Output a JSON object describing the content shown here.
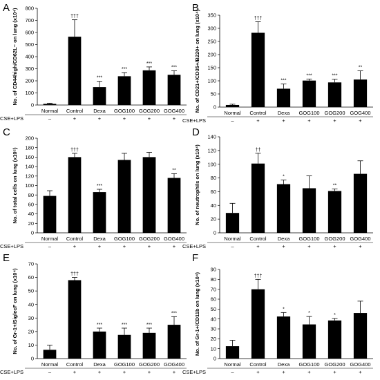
{
  "figure": {
    "condition_label": "CSE+LPS",
    "groups": [
      "Normal",
      "Control",
      "Dexa",
      "GOG100",
      "GOG200",
      "GOG400"
    ],
    "treatment_marks": [
      "–",
      "+",
      "+",
      "+",
      "+",
      "+"
    ]
  },
  "chart_data": [
    {
      "type": "bar",
      "panel_label": "A",
      "ylabel": "No. of CD44high/CD62L− on lung (x10⁴)",
      "ylim": [
        0,
        800
      ],
      "yticks": [
        0,
        100,
        200,
        300,
        400,
        500,
        600,
        700,
        800
      ],
      "categories": [
        "Normal",
        "Control",
        "Dexa",
        "GOG100",
        "GOG200",
        "GOG400"
      ],
      "values": [
        10,
        565,
        148,
        238,
        287,
        250
      ],
      "errors": [
        5,
        140,
        48,
        30,
        28,
        33
      ],
      "significance": [
        "",
        "†††",
        "***",
        "***",
        "***",
        "***"
      ]
    },
    {
      "type": "bar",
      "panel_label": "B",
      "ylabel": "No. of CD21+/CD35+/B220+ on lung (x10⁴)",
      "ylim": [
        0,
        350
      ],
      "yticks": [
        0,
        50,
        100,
        150,
        200,
        250,
        300,
        350
      ],
      "categories": [
        "Normal",
        "Control",
        "Dexa",
        "GOG100",
        "GOG200",
        "GOG400"
      ],
      "values": [
        8,
        283,
        70,
        101,
        94,
        105
      ],
      "errors": [
        3,
        42,
        18,
        6,
        12,
        33
      ],
      "significance": [
        "",
        "†††",
        "***",
        "***",
        "***",
        "**"
      ]
    },
    {
      "type": "bar",
      "panel_label": "C",
      "ylabel": "No. of total cells on lung (x10⁵)",
      "ylim": [
        0,
        200
      ],
      "yticks": [
        0,
        20,
        40,
        60,
        80,
        100,
        120,
        140,
        160,
        180,
        200
      ],
      "categories": [
        "Normal",
        "Control",
        "Dexa",
        "GOG100",
        "GOG200",
        "GOG400"
      ],
      "values": [
        78,
        160,
        86,
        154,
        160,
        116
      ],
      "errors": [
        11,
        8,
        6,
        14,
        10,
        9
      ],
      "significance": [
        "",
        "†††",
        "***",
        "",
        "",
        "**"
      ]
    },
    {
      "type": "bar",
      "panel_label": "D",
      "ylabel": "No. of neutrophils on lung (x10⁴)",
      "ylim": [
        0,
        140
      ],
      "yticks": [
        0,
        20,
        40,
        60,
        80,
        100,
        120,
        140
      ],
      "categories": [
        "Normal",
        "Control",
        "Dexa",
        "GOG100",
        "GOG200",
        "GOG400"
      ],
      "values": [
        29,
        101,
        71,
        65,
        61,
        86
      ],
      "errors": [
        14,
        15,
        6,
        18,
        3,
        19
      ],
      "significance": [
        "",
        "††",
        "*",
        "",
        "**",
        ""
      ]
    },
    {
      "type": "bar",
      "panel_label": "E",
      "ylabel": "No. of Gr-1+/SiglecF on lung (x10⁴)",
      "ylim": [
        0,
        70
      ],
      "yticks": [
        0,
        10,
        20,
        30,
        40,
        50,
        60,
        70
      ],
      "categories": [
        "Normal",
        "Control",
        "Dexa",
        "GOG100",
        "GOG200",
        "GOG400"
      ],
      "values": [
        6.5,
        58,
        20,
        17.5,
        19,
        25
      ],
      "errors": [
        3.5,
        2,
        2.5,
        5,
        3.5,
        6
      ],
      "significance": [
        "",
        "†††",
        "***",
        "***",
        "***",
        "***"
      ]
    },
    {
      "type": "bar",
      "panel_label": "F",
      "ylabel": "No. of Gr-1+/CD11b on lung (x10⁴)",
      "ylim": [
        0,
        90
      ],
      "yticks": [
        0,
        10,
        20,
        30,
        40,
        50,
        60,
        70,
        80,
        90
      ],
      "categories": [
        "Normal",
        "Control",
        "Dexa",
        "GOG100",
        "GOG200",
        "GOG400"
      ],
      "values": [
        12.5,
        70,
        42.5,
        34.5,
        38.5,
        46
      ],
      "errors": [
        6,
        10,
        4,
        8,
        2,
        12
      ],
      "significance": [
        "",
        "†††",
        "*",
        "*",
        "*",
        ""
      ]
    }
  ]
}
